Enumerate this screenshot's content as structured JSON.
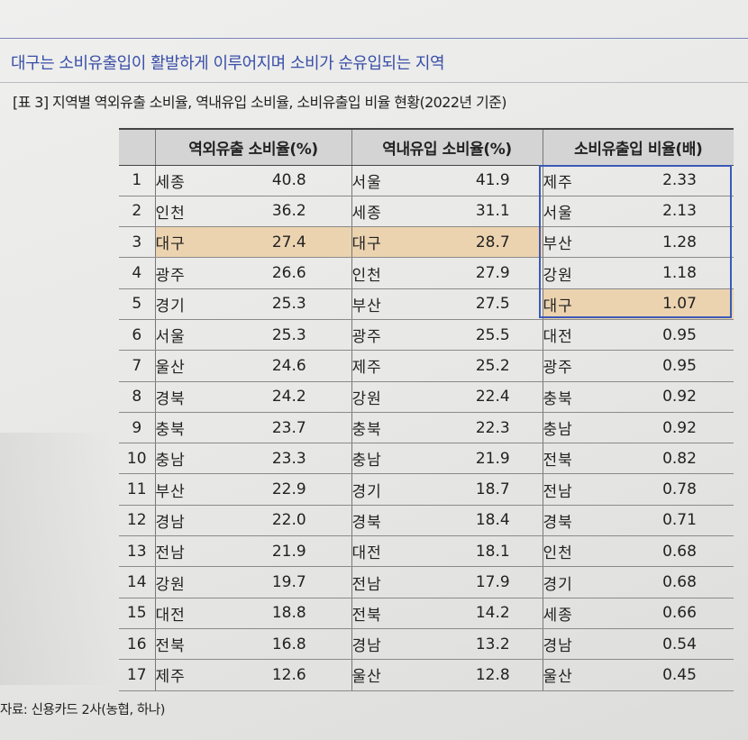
{
  "heading": "대구는 소비유출입이 활발하게 이루어지며 소비가 순유입되는 지역",
  "caption": "[표 3] 지역별 역외유출 소비율, 역내유입 소비율, 소비유출입 비율 현황(2022년 기준)",
  "table": {
    "headers": {
      "outflow": "역외유출 소비율(%)",
      "inflow": "역내유입 소비율(%)",
      "ratio": "소비유출입 비율(배)"
    },
    "rows": [
      {
        "rank": "1",
        "out_region": "세종",
        "out_value": "40.8",
        "in_region": "서울",
        "in_value": "41.9",
        "ratio_region": "제주",
        "ratio_value": "2.33"
      },
      {
        "rank": "2",
        "out_region": "인천",
        "out_value": "36.2",
        "in_region": "세종",
        "in_value": "31.1",
        "ratio_region": "서울",
        "ratio_value": "2.13"
      },
      {
        "rank": "3",
        "out_region": "대구",
        "out_value": "27.4",
        "in_region": "대구",
        "in_value": "28.7",
        "ratio_region": "부산",
        "ratio_value": "1.28"
      },
      {
        "rank": "4",
        "out_region": "광주",
        "out_value": "26.6",
        "in_region": "인천",
        "in_value": "27.9",
        "ratio_region": "강원",
        "ratio_value": "1.18"
      },
      {
        "rank": "5",
        "out_region": "경기",
        "out_value": "25.3",
        "in_region": "부산",
        "in_value": "27.5",
        "ratio_region": "대구",
        "ratio_value": "1.07"
      },
      {
        "rank": "6",
        "out_region": "서울",
        "out_value": "25.3",
        "in_region": "광주",
        "in_value": "25.5",
        "ratio_region": "대전",
        "ratio_value": "0.95"
      },
      {
        "rank": "7",
        "out_region": "울산",
        "out_value": "24.6",
        "in_region": "제주",
        "in_value": "25.2",
        "ratio_region": "광주",
        "ratio_value": "0.95"
      },
      {
        "rank": "8",
        "out_region": "경북",
        "out_value": "24.2",
        "in_region": "강원",
        "in_value": "22.4",
        "ratio_region": "충북",
        "ratio_value": "0.92"
      },
      {
        "rank": "9",
        "out_region": "충북",
        "out_value": "23.7",
        "in_region": "충북",
        "in_value": "22.3",
        "ratio_region": "충남",
        "ratio_value": "0.92"
      },
      {
        "rank": "10",
        "out_region": "충남",
        "out_value": "23.3",
        "in_region": "충남",
        "in_value": "21.9",
        "ratio_region": "전북",
        "ratio_value": "0.82"
      },
      {
        "rank": "11",
        "out_region": "부산",
        "out_value": "22.9",
        "in_region": "경기",
        "in_value": "18.7",
        "ratio_region": "전남",
        "ratio_value": "0.78"
      },
      {
        "rank": "12",
        "out_region": "경남",
        "out_value": "22.0",
        "in_region": "경북",
        "in_value": "18.4",
        "ratio_region": "경북",
        "ratio_value": "0.71"
      },
      {
        "rank": "13",
        "out_region": "전남",
        "out_value": "21.9",
        "in_region": "대전",
        "in_value": "18.1",
        "ratio_region": "인천",
        "ratio_value": "0.68"
      },
      {
        "rank": "14",
        "out_region": "강원",
        "out_value": "19.7",
        "in_region": "전남",
        "in_value": "17.9",
        "ratio_region": "경기",
        "ratio_value": "0.68"
      },
      {
        "rank": "15",
        "out_region": "대전",
        "out_value": "18.8",
        "in_region": "전북",
        "in_value": "14.2",
        "ratio_region": "세종",
        "ratio_value": "0.66"
      },
      {
        "rank": "16",
        "out_region": "전북",
        "out_value": "16.8",
        "in_region": "경남",
        "in_value": "13.2",
        "ratio_region": "경남",
        "ratio_value": "0.54"
      },
      {
        "rank": "17",
        "out_region": "제주",
        "out_value": "12.6",
        "in_region": "울산",
        "in_value": "12.8",
        "ratio_region": "울산",
        "ratio_value": "0.45"
      }
    ]
  },
  "source": "자료: 신용카드 2사(농협, 하나)",
  "colors": {
    "heading": "#3a4fa8",
    "highlight": "#ecd3b0",
    "box_outline": "#3b5ab8",
    "header_bg": "#d4d4d4"
  }
}
